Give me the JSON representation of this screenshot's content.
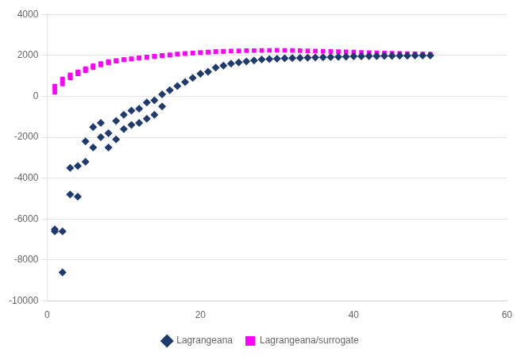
{
  "chart_data": {
    "type": "scatter",
    "series": [
      {
        "name": "Lagrangeana",
        "color": "#1F3A6E",
        "marker": "diamond",
        "x": [
          1,
          1,
          2,
          2,
          3,
          3,
          4,
          4,
          5,
          5,
          6,
          6,
          7,
          7,
          8,
          8,
          9,
          9,
          10,
          10,
          11,
          11,
          12,
          12,
          13,
          13,
          14,
          14,
          15,
          15,
          16,
          17,
          18,
          19,
          20,
          21,
          22,
          23,
          24,
          25,
          26,
          27,
          28,
          29,
          30,
          31,
          32,
          33,
          34,
          35,
          36,
          37,
          38,
          39,
          40,
          41,
          42,
          43,
          44,
          45,
          46,
          47,
          48,
          49,
          50
        ],
        "values": [
          -6500,
          -6600,
          -6600,
          -8600,
          -3500,
          -4800,
          -3400,
          -4900,
          -2200,
          -3200,
          -1500,
          -2500,
          -1300,
          -2000,
          -1800,
          -2500,
          -1200,
          -2100,
          -900,
          -1600,
          -700,
          -1400,
          -600,
          -1300,
          -300,
          -1100,
          -200,
          -900,
          100,
          -500,
          300,
          500,
          700,
          900,
          1100,
          1200,
          1400,
          1500,
          1600,
          1650,
          1700,
          1750,
          1800,
          1820,
          1840,
          1860,
          1870,
          1880,
          1890,
          1900,
          1910,
          1920,
          1930,
          1940,
          1950,
          1955,
          1960,
          1965,
          1970,
          1975,
          1980,
          1985,
          1990,
          1992,
          1995
        ]
      },
      {
        "name": "Lagrangeana/surrogate",
        "color": "#FF00FF",
        "marker": "square",
        "x": [
          1,
          1,
          1,
          2,
          2,
          2,
          3,
          3,
          3,
          4,
          4,
          4,
          5,
          5,
          5,
          6,
          6,
          6,
          7,
          7,
          7,
          8,
          8,
          8,
          9,
          9,
          10,
          10,
          11,
          11,
          12,
          12,
          13,
          13,
          14,
          14,
          15,
          15,
          16,
          16,
          17,
          17,
          18,
          18,
          19,
          19,
          20,
          20,
          21,
          21,
          22,
          22,
          23,
          23,
          24,
          25,
          26,
          27,
          28,
          29,
          30,
          31,
          32,
          33,
          34,
          35,
          36,
          37,
          38,
          39,
          40,
          41,
          42,
          43,
          44,
          45,
          46,
          47,
          48,
          49,
          50
        ],
        "values": [
          200,
          350,
          500,
          600,
          750,
          850,
          900,
          1000,
          1050,
          1100,
          1150,
          1200,
          1250,
          1300,
          1350,
          1400,
          1450,
          1500,
          1530,
          1560,
          1600,
          1630,
          1660,
          1700,
          1720,
          1750,
          1780,
          1800,
          1820,
          1840,
          1860,
          1880,
          1900,
          1920,
          1940,
          1960,
          1980,
          2000,
          2010,
          2030,
          2050,
          2070,
          2080,
          2100,
          2110,
          2120,
          2130,
          2140,
          2150,
          2160,
          2170,
          2180,
          2190,
          2200,
          2210,
          2220,
          2230,
          2235,
          2240,
          2245,
          2250,
          2245,
          2240,
          2230,
          2220,
          2210,
          2200,
          2190,
          2180,
          2170,
          2160,
          2150,
          2140,
          2130,
          2120,
          2110,
          2100,
          2090,
          2080,
          2070,
          2060
        ]
      }
    ],
    "xlim": [
      0,
      60
    ],
    "xticks": [
      0,
      20,
      40,
      60
    ],
    "ylim": [
      -10000,
      4000
    ],
    "yticks": [
      -10000,
      -8000,
      -6000,
      -4000,
      -2000,
      0,
      2000,
      4000
    ],
    "grid": "y",
    "legend": "bottom"
  }
}
